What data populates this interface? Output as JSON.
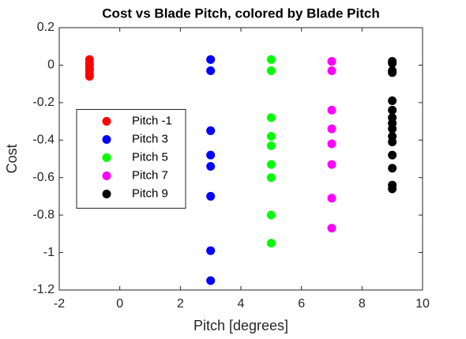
{
  "chart_data": {
    "type": "scatter",
    "title": "Cost vs Blade Pitch, colored by Blade Pitch",
    "xlabel": "Pitch [degrees]",
    "ylabel": "Cost",
    "xlim": [
      -2,
      10
    ],
    "xticks": [
      -2,
      0,
      2,
      4,
      6,
      8,
      10
    ],
    "ylim": [
      -1.2,
      0.2
    ],
    "yticks": [
      -1.2,
      -1,
      -0.8,
      -0.6,
      -0.4,
      -0.2,
      0,
      0.2
    ],
    "grid": false,
    "legend": "west",
    "series": [
      {
        "name": "Pitch -1",
        "color": "#ff0000",
        "x": [
          -1,
          -1,
          -1,
          -1,
          -1,
          -1,
          -1
        ],
        "values": [
          0.03,
          0.01,
          0,
          -0.02,
          -0.03,
          -0.05,
          -0.06
        ]
      },
      {
        "name": "Pitch 3",
        "color": "#0000ff",
        "x": [
          3,
          3,
          3,
          3,
          3,
          3,
          3,
          3
        ],
        "values": [
          0.03,
          -0.03,
          -0.35,
          -0.48,
          -0.54,
          -0.7,
          -0.99,
          -1.15
        ]
      },
      {
        "name": "Pitch 5",
        "color": "#00ff00",
        "x": [
          5,
          5,
          5,
          5,
          5,
          5,
          5,
          5,
          5
        ],
        "values": [
          0.03,
          -0.03,
          -0.28,
          -0.38,
          -0.43,
          -0.53,
          -0.6,
          -0.8,
          -0.95
        ]
      },
      {
        "name": "Pitch 7",
        "color": "#ff00ff",
        "x": [
          7,
          7,
          7,
          7,
          7,
          7,
          7,
          7
        ],
        "values": [
          0.02,
          -0.03,
          -0.24,
          -0.34,
          -0.42,
          -0.53,
          -0.71,
          -0.87
        ]
      },
      {
        "name": "Pitch 9",
        "color": "#000000",
        "x": [
          9,
          9,
          9,
          9,
          9,
          9,
          9,
          9,
          9,
          9,
          9,
          9,
          9,
          9,
          9
        ],
        "values": [
          0.02,
          0.01,
          -0.03,
          -0.04,
          -0.19,
          -0.24,
          -0.28,
          -0.31,
          -0.34,
          -0.38,
          -0.41,
          -0.48,
          -0.55,
          -0.64,
          -0.66
        ]
      }
    ]
  }
}
